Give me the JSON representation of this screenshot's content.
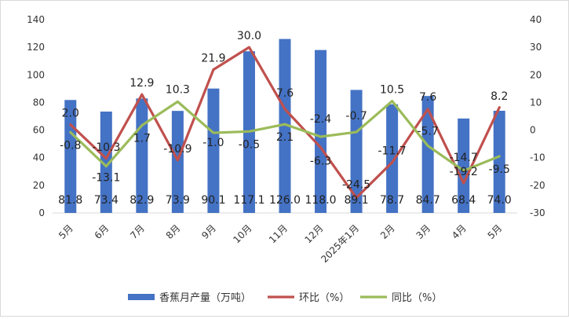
{
  "chart_data": {
    "type": "bar",
    "categories": [
      "5月",
      "6月",
      "7月",
      "8月",
      "9月",
      "10月",
      "11月",
      "12月",
      "2025年1月",
      "2月",
      "3月",
      "4月",
      "5月"
    ],
    "series": [
      {
        "name": "香蕉月产量（万吨）",
        "type": "bar",
        "axis": "left",
        "color": "#4472C4",
        "values": [
          81.8,
          73.4,
          82.9,
          73.9,
          90.1,
          117.1,
          126.0,
          118.0,
          89.1,
          78.7,
          84.7,
          68.4,
          74.0
        ],
        "labels": [
          "81.8",
          "73.4",
          "82.9",
          "73.9",
          "90.1",
          "117.1",
          "126.0",
          "118.0",
          "89.1",
          "78.7",
          "84.7",
          "68.4",
          "74.0"
        ]
      },
      {
        "name": "环比（%）",
        "type": "line",
        "axis": "right",
        "color": "#C0504D",
        "values": [
          2.0,
          -10.3,
          12.9,
          -10.9,
          21.9,
          30.0,
          7.6,
          -6.3,
          -24.5,
          -11.7,
          7.6,
          -19.2,
          8.2
        ],
        "labels": [
          "2.0",
          "-10.3",
          "12.9",
          "-10.9",
          "21.9",
          "30.0",
          "7.6",
          "-6.3",
          "-24.5",
          "-11.7",
          "7.6",
          "-19.2",
          "8.2"
        ]
      },
      {
        "name": "同比（%）",
        "type": "line",
        "axis": "right",
        "color": "#9BBB59",
        "values": [
          -0.8,
          -13.1,
          1.7,
          10.3,
          -1.0,
          -0.5,
          2.1,
          -2.4,
          -0.7,
          10.5,
          -5.7,
          -14.7,
          -9.5
        ],
        "labels": [
          "-0.8",
          "-13.1",
          "1.7",
          "10.3",
          "-1.0",
          "-0.5",
          "2.1",
          "-2.4",
          "-0.7",
          "10.5",
          "-5.7",
          "-14.7",
          "-9.5"
        ]
      }
    ],
    "y_left": {
      "min": 0,
      "max": 140,
      "ticks": [
        "0",
        "20",
        "40",
        "60",
        "80",
        "100",
        "120",
        "140"
      ]
    },
    "y_right": {
      "min": -30,
      "max": 40,
      "ticks": [
        "-30",
        "-20",
        "-10",
        "0",
        "10",
        "20",
        "30",
        "40"
      ]
    },
    "legend_position": "bottom",
    "grid": false
  }
}
